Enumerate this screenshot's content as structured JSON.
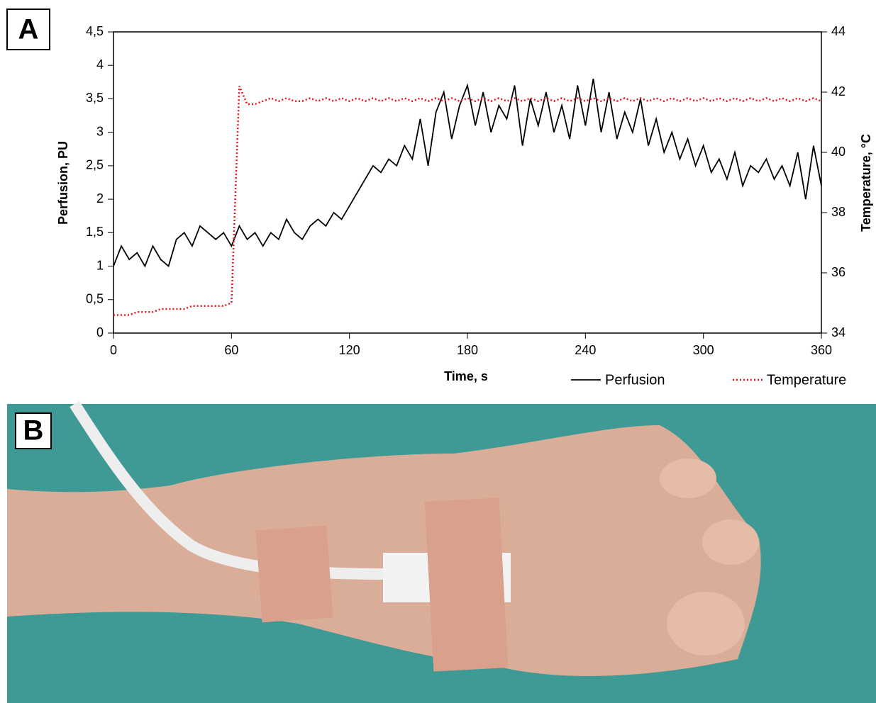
{
  "panel_labels": [
    "A",
    "B"
  ],
  "chart_data": {
    "type": "line",
    "xlabel": "Time, s",
    "ylabel": "Perfusion, PU",
    "y2label": "Temperature, °C",
    "x": [
      0,
      4,
      8,
      12,
      16,
      20,
      24,
      28,
      32,
      36,
      40,
      44,
      48,
      52,
      56,
      60,
      64,
      68,
      72,
      76,
      80,
      84,
      88,
      92,
      96,
      100,
      104,
      108,
      112,
      116,
      120,
      124,
      128,
      132,
      136,
      140,
      144,
      148,
      152,
      156,
      160,
      164,
      168,
      172,
      176,
      180,
      184,
      188,
      192,
      196,
      200,
      204,
      208,
      212,
      216,
      220,
      224,
      228,
      232,
      236,
      240,
      244,
      248,
      252,
      256,
      260,
      264,
      268,
      272,
      276,
      280,
      284,
      288,
      292,
      296,
      300,
      304,
      308,
      312,
      316,
      320,
      324,
      328,
      332,
      336,
      340,
      344,
      348,
      352,
      356,
      360
    ],
    "series": [
      {
        "name": "Perfusion",
        "color": "#000000",
        "style": "solid",
        "values": [
          1.0,
          1.3,
          1.1,
          1.2,
          1.0,
          1.3,
          1.1,
          1.0,
          1.4,
          1.5,
          1.3,
          1.6,
          1.5,
          1.4,
          1.5,
          1.3,
          1.6,
          1.4,
          1.5,
          1.3,
          1.5,
          1.4,
          1.7,
          1.5,
          1.4,
          1.6,
          1.7,
          1.6,
          1.8,
          1.7,
          1.9,
          2.1,
          2.3,
          2.5,
          2.4,
          2.6,
          2.5,
          2.8,
          2.6,
          3.2,
          2.5,
          3.3,
          3.6,
          2.9,
          3.4,
          3.7,
          3.1,
          3.6,
          3.0,
          3.4,
          3.2,
          3.7,
          2.8,
          3.5,
          3.1,
          3.6,
          3.0,
          3.4,
          2.9,
          3.7,
          3.1,
          3.8,
          3.0,
          3.6,
          2.9,
          3.3,
          3.0,
          3.5,
          2.8,
          3.2,
          2.7,
          3.0,
          2.6,
          2.9,
          2.5,
          2.8,
          2.4,
          2.6,
          2.3,
          2.7,
          2.2,
          2.5,
          2.4,
          2.6,
          2.3,
          2.5,
          2.2,
          2.7,
          2.0,
          2.8,
          2.2
        ]
      },
      {
        "name": "Temperature",
        "color": "#e8141b",
        "style": "dotted",
        "axis": "y2",
        "values": [
          34.6,
          34.6,
          34.6,
          34.7,
          34.7,
          34.7,
          34.8,
          34.8,
          34.8,
          34.8,
          34.9,
          34.9,
          34.9,
          34.9,
          34.9,
          35.0,
          42.2,
          41.6,
          41.6,
          41.7,
          41.8,
          41.7,
          41.8,
          41.7,
          41.7,
          41.8,
          41.7,
          41.8,
          41.7,
          41.8,
          41.7,
          41.8,
          41.7,
          41.8,
          41.7,
          41.8,
          41.7,
          41.8,
          41.7,
          41.8,
          41.7,
          41.8,
          41.7,
          41.8,
          41.7,
          41.8,
          41.7,
          41.8,
          41.7,
          41.8,
          41.7,
          41.8,
          41.7,
          41.8,
          41.7,
          41.8,
          41.7,
          41.8,
          41.7,
          41.8,
          41.7,
          41.8,
          41.7,
          41.8,
          41.7,
          41.8,
          41.7,
          41.8,
          41.7,
          41.8,
          41.7,
          41.8,
          41.7,
          41.8,
          41.7,
          41.8,
          41.7,
          41.8,
          41.7,
          41.8,
          41.7,
          41.8,
          41.7,
          41.8,
          41.7,
          41.8,
          41.7,
          41.8,
          41.7,
          41.8,
          41.7
        ]
      }
    ],
    "xlim": [
      0,
      360
    ],
    "xticks": [
      0,
      60,
      120,
      180,
      240,
      300,
      360
    ],
    "ylim": [
      0,
      4.5
    ],
    "yticks": [
      0,
      {
        "value": 0.5,
        "label": "0,5"
      },
      1,
      {
        "value": 1.5,
        "label": "1,5"
      },
      2,
      {
        "value": 2.5,
        "label": "2,5"
      },
      3,
      {
        "value": 3.5,
        "label": "3,5"
      },
      4,
      {
        "value": 4.5,
        "label": "4,5"
      }
    ],
    "y2lim": [
      34,
      44
    ],
    "y2ticks": [
      34,
      36,
      38,
      40,
      42,
      44
    ],
    "grid": false,
    "legend": "bottom-right"
  }
}
